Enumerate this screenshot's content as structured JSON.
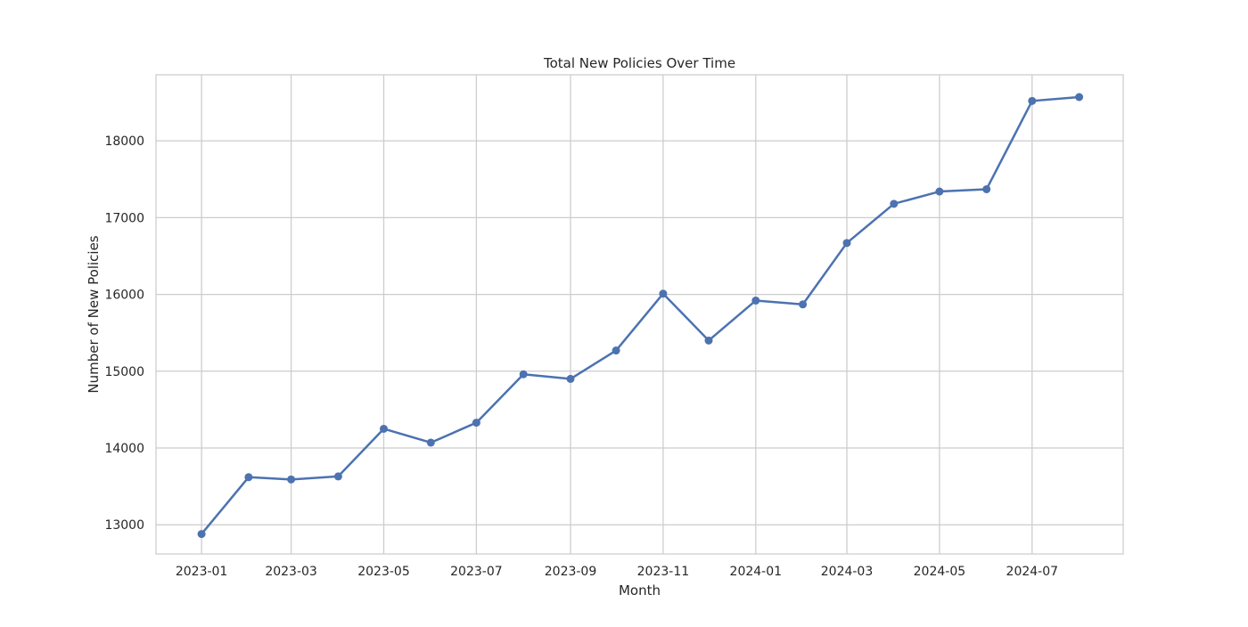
{
  "chart_data": {
    "type": "line",
    "title": "Total New Policies Over Time",
    "xlabel": "Month",
    "ylabel": "Number of New Policies",
    "grid": true,
    "line_color": "#4c72b0",
    "grid_color": "#cccccc",
    "x": [
      "2023-01",
      "2023-02",
      "2023-03",
      "2023-04",
      "2023-05",
      "2023-06",
      "2023-07",
      "2023-08",
      "2023-09",
      "2023-10",
      "2023-11",
      "2023-12",
      "2024-01",
      "2024-02",
      "2024-03",
      "2024-04",
      "2024-05",
      "2024-06",
      "2024-07",
      "2024-08"
    ],
    "series": [
      {
        "values": [
          12880,
          13620,
          13590,
          13630,
          14250,
          14070,
          14330,
          14960,
          14900,
          15270,
          16010,
          15400,
          15920,
          15870,
          16670,
          17180,
          17340,
          17370,
          18520,
          18570
        ]
      }
    ],
    "xticks": [
      "2023-01",
      "2023-03",
      "2023-05",
      "2023-07",
      "2023-09",
      "2023-11",
      "2024-01",
      "2024-03",
      "2024-05",
      "2024-07"
    ],
    "yticks": [
      13000,
      14000,
      15000,
      16000,
      17000,
      18000
    ],
    "xlim": [
      "2022-12-02",
      "2024-08-30"
    ],
    "ylim": [
      12620,
      18860
    ]
  }
}
